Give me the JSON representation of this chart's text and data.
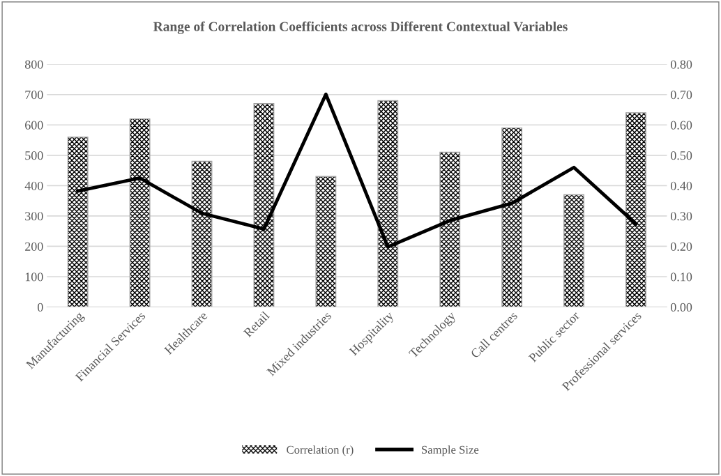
{
  "chart_data": {
    "type": "bar",
    "title": "Range of Correlation Coefficients across Different Contextual Variables",
    "categories": [
      "Manufacturing",
      "Financial Services",
      "Healthcare",
      "Retail",
      "Mixed industries",
      "Hospitality",
      "Technology",
      "Call centres",
      "Public sector",
      "Professional services"
    ],
    "series": [
      {
        "name": "Correlation (r)",
        "axis": "y2",
        "color": "#000000",
        "values": [
          0.56,
          0.62,
          0.48,
          0.67,
          0.43,
          0.68,
          0.51,
          0.59,
          0.37,
          0.64
        ]
      },
      {
        "name": "Sample Size",
        "type": "line",
        "color": "#000000",
        "values": [
          382,
          425,
          309,
          257,
          701,
          198,
          285,
          342,
          460,
          274
        ]
      }
    ],
    "ylim": [
      0,
      800
    ],
    "yticks": [
      0,
      100,
      200,
      300,
      400,
      500,
      600,
      700,
      800
    ],
    "y2lim": [
      0,
      0.8
    ],
    "y2ticks": [
      {
        "value": 0,
        "label": "0.00"
      },
      {
        "value": 0.1,
        "label": "0.10"
      },
      {
        "value": 0.2,
        "label": "0.20"
      },
      {
        "value": 0.3,
        "label": "0.30"
      },
      {
        "value": 0.4,
        "label": "0.40"
      },
      {
        "value": 0.5,
        "label": "0.50"
      },
      {
        "value": 0.6,
        "label": "0.60"
      },
      {
        "value": 0.7,
        "label": "0.70"
      },
      {
        "value": 0.8,
        "label": "0.80"
      }
    ],
    "grid": "y",
    "legend": "bottom",
    "marker": "none",
    "line_style": "solid"
  }
}
